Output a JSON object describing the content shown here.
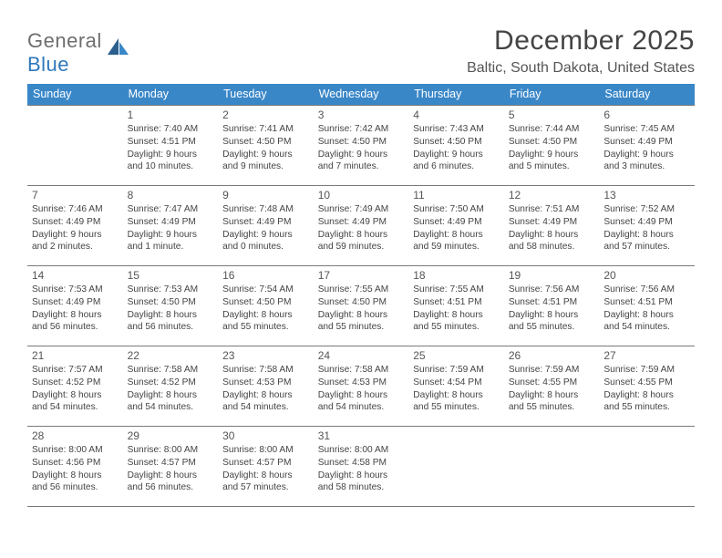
{
  "logo": {
    "text_general": "General",
    "text_blue": "Blue",
    "icon_fill_dark": "#2c5f8d",
    "icon_fill_light": "#3a87c8"
  },
  "title": "December 2025",
  "location": "Baltic, South Dakota, United States",
  "header_bg": "#3a87c8",
  "row_border": "#7a7a7a",
  "weekdays": [
    "Sunday",
    "Monday",
    "Tuesday",
    "Wednesday",
    "Thursday",
    "Friday",
    "Saturday"
  ],
  "weeks": [
    [
      null,
      {
        "day": "1",
        "sunrise": "Sunrise: 7:40 AM",
        "sunset": "Sunset: 4:51 PM",
        "daylight": "Daylight: 9 hours and 10 minutes."
      },
      {
        "day": "2",
        "sunrise": "Sunrise: 7:41 AM",
        "sunset": "Sunset: 4:50 PM",
        "daylight": "Daylight: 9 hours and 9 minutes."
      },
      {
        "day": "3",
        "sunrise": "Sunrise: 7:42 AM",
        "sunset": "Sunset: 4:50 PM",
        "daylight": "Daylight: 9 hours and 7 minutes."
      },
      {
        "day": "4",
        "sunrise": "Sunrise: 7:43 AM",
        "sunset": "Sunset: 4:50 PM",
        "daylight": "Daylight: 9 hours and 6 minutes."
      },
      {
        "day": "5",
        "sunrise": "Sunrise: 7:44 AM",
        "sunset": "Sunset: 4:50 PM",
        "daylight": "Daylight: 9 hours and 5 minutes."
      },
      {
        "day": "6",
        "sunrise": "Sunrise: 7:45 AM",
        "sunset": "Sunset: 4:49 PM",
        "daylight": "Daylight: 9 hours and 3 minutes."
      }
    ],
    [
      {
        "day": "7",
        "sunrise": "Sunrise: 7:46 AM",
        "sunset": "Sunset: 4:49 PM",
        "daylight": "Daylight: 9 hours and 2 minutes."
      },
      {
        "day": "8",
        "sunrise": "Sunrise: 7:47 AM",
        "sunset": "Sunset: 4:49 PM",
        "daylight": "Daylight: 9 hours and 1 minute."
      },
      {
        "day": "9",
        "sunrise": "Sunrise: 7:48 AM",
        "sunset": "Sunset: 4:49 PM",
        "daylight": "Daylight: 9 hours and 0 minutes."
      },
      {
        "day": "10",
        "sunrise": "Sunrise: 7:49 AM",
        "sunset": "Sunset: 4:49 PM",
        "daylight": "Daylight: 8 hours and 59 minutes."
      },
      {
        "day": "11",
        "sunrise": "Sunrise: 7:50 AM",
        "sunset": "Sunset: 4:49 PM",
        "daylight": "Daylight: 8 hours and 59 minutes."
      },
      {
        "day": "12",
        "sunrise": "Sunrise: 7:51 AM",
        "sunset": "Sunset: 4:49 PM",
        "daylight": "Daylight: 8 hours and 58 minutes."
      },
      {
        "day": "13",
        "sunrise": "Sunrise: 7:52 AM",
        "sunset": "Sunset: 4:49 PM",
        "daylight": "Daylight: 8 hours and 57 minutes."
      }
    ],
    [
      {
        "day": "14",
        "sunrise": "Sunrise: 7:53 AM",
        "sunset": "Sunset: 4:49 PM",
        "daylight": "Daylight: 8 hours and 56 minutes."
      },
      {
        "day": "15",
        "sunrise": "Sunrise: 7:53 AM",
        "sunset": "Sunset: 4:50 PM",
        "daylight": "Daylight: 8 hours and 56 minutes."
      },
      {
        "day": "16",
        "sunrise": "Sunrise: 7:54 AM",
        "sunset": "Sunset: 4:50 PM",
        "daylight": "Daylight: 8 hours and 55 minutes."
      },
      {
        "day": "17",
        "sunrise": "Sunrise: 7:55 AM",
        "sunset": "Sunset: 4:50 PM",
        "daylight": "Daylight: 8 hours and 55 minutes."
      },
      {
        "day": "18",
        "sunrise": "Sunrise: 7:55 AM",
        "sunset": "Sunset: 4:51 PM",
        "daylight": "Daylight: 8 hours and 55 minutes."
      },
      {
        "day": "19",
        "sunrise": "Sunrise: 7:56 AM",
        "sunset": "Sunset: 4:51 PM",
        "daylight": "Daylight: 8 hours and 55 minutes."
      },
      {
        "day": "20",
        "sunrise": "Sunrise: 7:56 AM",
        "sunset": "Sunset: 4:51 PM",
        "daylight": "Daylight: 8 hours and 54 minutes."
      }
    ],
    [
      {
        "day": "21",
        "sunrise": "Sunrise: 7:57 AM",
        "sunset": "Sunset: 4:52 PM",
        "daylight": "Daylight: 8 hours and 54 minutes."
      },
      {
        "day": "22",
        "sunrise": "Sunrise: 7:58 AM",
        "sunset": "Sunset: 4:52 PM",
        "daylight": "Daylight: 8 hours and 54 minutes."
      },
      {
        "day": "23",
        "sunrise": "Sunrise: 7:58 AM",
        "sunset": "Sunset: 4:53 PM",
        "daylight": "Daylight: 8 hours and 54 minutes."
      },
      {
        "day": "24",
        "sunrise": "Sunrise: 7:58 AM",
        "sunset": "Sunset: 4:53 PM",
        "daylight": "Daylight: 8 hours and 54 minutes."
      },
      {
        "day": "25",
        "sunrise": "Sunrise: 7:59 AM",
        "sunset": "Sunset: 4:54 PM",
        "daylight": "Daylight: 8 hours and 55 minutes."
      },
      {
        "day": "26",
        "sunrise": "Sunrise: 7:59 AM",
        "sunset": "Sunset: 4:55 PM",
        "daylight": "Daylight: 8 hours and 55 minutes."
      },
      {
        "day": "27",
        "sunrise": "Sunrise: 7:59 AM",
        "sunset": "Sunset: 4:55 PM",
        "daylight": "Daylight: 8 hours and 55 minutes."
      }
    ],
    [
      {
        "day": "28",
        "sunrise": "Sunrise: 8:00 AM",
        "sunset": "Sunset: 4:56 PM",
        "daylight": "Daylight: 8 hours and 56 minutes."
      },
      {
        "day": "29",
        "sunrise": "Sunrise: 8:00 AM",
        "sunset": "Sunset: 4:57 PM",
        "daylight": "Daylight: 8 hours and 56 minutes."
      },
      {
        "day": "30",
        "sunrise": "Sunrise: 8:00 AM",
        "sunset": "Sunset: 4:57 PM",
        "daylight": "Daylight: 8 hours and 57 minutes."
      },
      {
        "day": "31",
        "sunrise": "Sunrise: 8:00 AM",
        "sunset": "Sunset: 4:58 PM",
        "daylight": "Daylight: 8 hours and 58 minutes."
      },
      null,
      null,
      null
    ]
  ]
}
